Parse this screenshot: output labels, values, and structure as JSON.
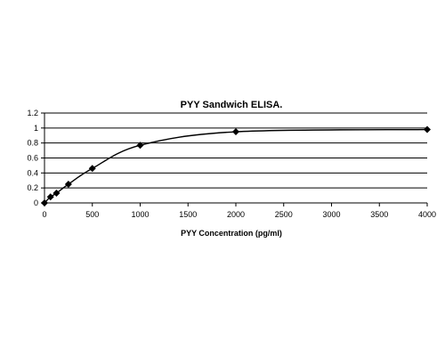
{
  "chart_data": {
    "type": "line",
    "title": "PYY Sandwich ELISA.",
    "xlabel": "PYY Concentration (pg/ml)",
    "ylabel": "",
    "xlim": [
      0,
      4000
    ],
    "ylim": [
      0,
      1.2
    ],
    "x_ticks": [
      "0",
      "500",
      "1000",
      "1500",
      "2000",
      "2500",
      "3000",
      "3500",
      "4000"
    ],
    "y_ticks": [
      "0",
      "0.2",
      "0.4",
      "0.6",
      "0.8",
      "1",
      "1.2"
    ],
    "grid": "horizontal",
    "legend": "none",
    "series": [
      {
        "marker": "diamond",
        "points": [
          {
            "x": 0,
            "y": 0
          },
          {
            "x": 62.5,
            "y": 0.08
          },
          {
            "x": 125,
            "y": 0.13
          },
          {
            "x": 250,
            "y": 0.25
          },
          {
            "x": 500,
            "y": 0.46
          },
          {
            "x": 1000,
            "y": 0.77
          },
          {
            "x": 2000,
            "y": 0.95
          },
          {
            "x": 4000,
            "y": 0.98
          }
        ]
      }
    ],
    "colors": {
      "line": "#000000",
      "marker": "#000000",
      "grid": "#000000",
      "axis": "#000000",
      "background": "#ffffff"
    }
  }
}
